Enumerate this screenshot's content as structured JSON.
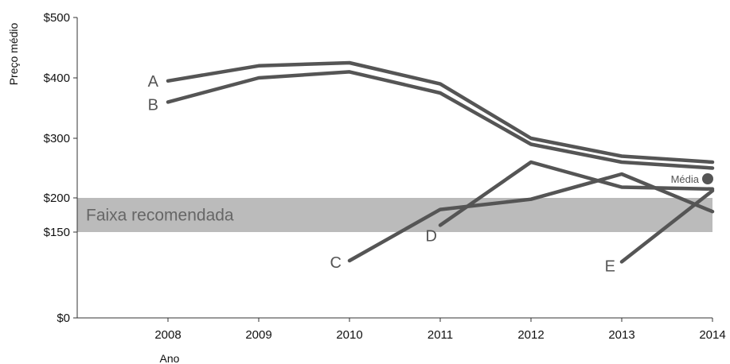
{
  "chart_data": {
    "type": "line",
    "xlabel": "Ano",
    "ylabel": "Preço médio",
    "x": [
      2008,
      2009,
      2010,
      2011,
      2012,
      2013,
      2014
    ],
    "xlim": [
      2007,
      2014
    ],
    "yticks": [
      {
        "value": 0,
        "label": "$0"
      },
      {
        "value": 150,
        "label": "$150"
      },
      {
        "value": 200,
        "label": "$200"
      },
      {
        "value": 300,
        "label": "$300"
      },
      {
        "value": 400,
        "label": "$400"
      },
      {
        "value": 500,
        "label": "$500"
      }
    ],
    "ylim": [
      0,
      500
    ],
    "line_color": "#555555",
    "band": {
      "label": "Faixa recomendada",
      "from": 150,
      "to": 200,
      "color": "#bbbbbb"
    },
    "series": [
      {
        "name": "A",
        "x": [
          2008,
          2009,
          2010,
          2011,
          2012,
          2013,
          2014
        ],
        "values": [
          395,
          420,
          425,
          390,
          300,
          270,
          260
        ]
      },
      {
        "name": "B",
        "x": [
          2008,
          2009,
          2010,
          2011,
          2012,
          2013,
          2014
        ],
        "values": [
          360,
          400,
          410,
          375,
          290,
          260,
          250
        ]
      },
      {
        "name": "C",
        "x": [
          2010,
          2011,
          2012,
          2013,
          2014
        ],
        "values": [
          100,
          183,
          198,
          240,
          180
        ]
      },
      {
        "name": "D",
        "x": [
          2011,
          2012,
          2013,
          2014
        ],
        "values": [
          160,
          260,
          218,
          215
        ]
      },
      {
        "name": "E",
        "x": [
          2013,
          2014
        ],
        "values": [
          98,
          212
        ]
      }
    ],
    "mean": {
      "label": "Média",
      "x": 2014,
      "value": 232
    }
  }
}
